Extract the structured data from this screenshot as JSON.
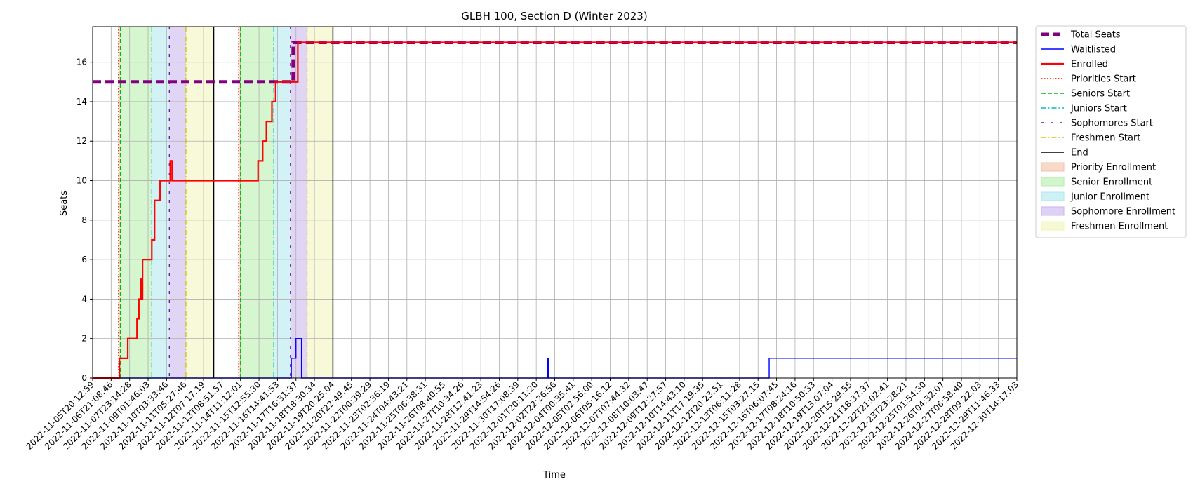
{
  "chart_data": {
    "type": "line",
    "title": "GLBH 100, Section D (Winter 2023)",
    "xlabel": "Time",
    "ylabel": "Seats",
    "ylim": [
      0,
      17.8
    ],
    "yticks": [
      0,
      2,
      4,
      6,
      8,
      10,
      12,
      14,
      16
    ],
    "x_index_range": [
      0,
      50
    ],
    "xtick_labels": [
      "2022-11-05T20:12:59",
      "2022-11-06T21:08:46",
      "2022-11-07T23:14:28",
      "2022-11-09T01:46:03",
      "2022-11-10T03:33:46",
      "2022-11-11T05:27:46",
      "2022-11-12T07:17:19",
      "2022-11-13T08:51:57",
      "2022-11-14T11:12:01",
      "2022-11-15T12:55:30",
      "2022-11-16T14:41:53",
      "2022-11-17T16:31:37",
      "2022-11-18T18:30:34",
      "2022-11-19T20:25:04",
      "2022-11-20T22:49:45",
      "2022-11-22T00:39:29",
      "2022-11-23T02:36:19",
      "2022-11-24T04:43:21",
      "2022-11-25T06:38:31",
      "2022-11-26T08:40:55",
      "2022-11-27T10:34:26",
      "2022-11-28T12:41:23",
      "2022-11-29T14:54:26",
      "2022-11-30T17:08:39",
      "2022-12-01T20:11:20",
      "2022-12-02T22:26:56",
      "2022-12-04T00:35:41",
      "2022-12-05T02:56:00",
      "2022-12-06T05:16:12",
      "2022-12-07T07:44:32",
      "2022-12-08T10:03:47",
      "2022-12-09T12:27:57",
      "2022-12-10T14:43:10",
      "2022-12-11T17:19:35",
      "2022-12-12T20:23:51",
      "2022-12-13T06:11:28",
      "2022-12-15T03:27:15",
      "2022-12-16T06:07:45",
      "2022-12-17T08:24:16",
      "2022-12-18T10:50:33",
      "2022-12-19T13:07:04",
      "2022-12-20T15:29:55",
      "2022-12-21T18:37:37",
      "2022-12-22T21:02:41",
      "2022-12-23T23:28:21",
      "2022-12-25T01:54:30",
      "2022-12-26T04:32:07",
      "2022-12-27T06:58:40",
      "2022-12-28T09:22:03",
      "2022-12-29T11:46:33",
      "2022-12-30T14:17:03"
    ],
    "series": [
      {
        "name": "Total Seats",
        "color": "#800080",
        "style": "dashed",
        "points": [
          [
            0,
            15
          ],
          [
            10.85,
            15
          ],
          [
            10.85,
            17
          ],
          [
            50,
            17
          ]
        ]
      },
      {
        "name": "Waitlisted",
        "color": "#0000ff",
        "style": "solid",
        "points": [
          [
            0,
            0
          ],
          [
            10.75,
            0
          ],
          [
            10.75,
            1
          ],
          [
            11,
            1
          ],
          [
            11,
            2
          ],
          [
            11.3,
            2
          ],
          [
            11.3,
            0
          ],
          [
            24.6,
            0
          ],
          [
            24.6,
            1
          ],
          [
            24.65,
            1
          ],
          [
            24.65,
            0
          ],
          [
            36.6,
            0
          ],
          [
            36.6,
            1
          ],
          [
            50,
            1
          ]
        ]
      },
      {
        "name": "Enrolled",
        "color": "#ff0000",
        "style": "solid",
        "points": [
          [
            0,
            0
          ],
          [
            1.45,
            0
          ],
          [
            1.45,
            1
          ],
          [
            1.9,
            1
          ],
          [
            1.9,
            2
          ],
          [
            2.4,
            2
          ],
          [
            2.4,
            3
          ],
          [
            2.5,
            3
          ],
          [
            2.5,
            4
          ],
          [
            2.6,
            4
          ],
          [
            2.6,
            5
          ],
          [
            2.65,
            5
          ],
          [
            2.65,
            4
          ],
          [
            2.7,
            4
          ],
          [
            2.7,
            6
          ],
          [
            3.2,
            6
          ],
          [
            3.2,
            7
          ],
          [
            3.35,
            7
          ],
          [
            3.35,
            9
          ],
          [
            3.65,
            9
          ],
          [
            3.65,
            10
          ],
          [
            4.2,
            10
          ],
          [
            4.2,
            11
          ],
          [
            4.3,
            11
          ],
          [
            4.3,
            10
          ],
          [
            8.95,
            10
          ],
          [
            8.95,
            11
          ],
          [
            9.2,
            11
          ],
          [
            9.2,
            12
          ],
          [
            9.4,
            12
          ],
          [
            9.4,
            13
          ],
          [
            9.7,
            13
          ],
          [
            9.7,
            14
          ],
          [
            9.9,
            14
          ],
          [
            9.9,
            15
          ],
          [
            11.1,
            15
          ],
          [
            11.1,
            17
          ],
          [
            50,
            17
          ]
        ]
      }
    ],
    "markers": [
      {
        "name": "Priorities Start",
        "color": "#ff0000",
        "style": "dotted",
        "x": [
          1.4,
          7.9
        ]
      },
      {
        "name": "Seniors Start",
        "color": "#00bb00",
        "style": "dashed",
        "x": [
          1.5,
          8.0
        ]
      },
      {
        "name": "Juniors Start",
        "color": "#00bfbf",
        "style": "dashdot",
        "x": [
          3.2,
          9.8
        ]
      },
      {
        "name": "Sophomores Start",
        "color": "#6a0dad",
        "style": "loosedash",
        "x": [
          4.15,
          10.7
        ]
      },
      {
        "name": "Freshmen Start",
        "color": "#d4c400",
        "style": "dashdot",
        "x": [
          5.05,
          11.6
        ]
      },
      {
        "name": "End",
        "color": "#000000",
        "style": "solid",
        "x": [
          6.55,
          13.0
        ]
      }
    ],
    "regions": [
      {
        "name": "Priority Enrollment",
        "color": "#f4c2a8",
        "spans": [
          [
            1.4,
            1.5
          ],
          [
            7.9,
            8.0
          ]
        ]
      },
      {
        "name": "Senior Enrollment",
        "color": "#b4eeaa",
        "spans": [
          [
            1.5,
            3.2
          ],
          [
            8.0,
            9.8
          ]
        ]
      },
      {
        "name": "Junior Enrollment",
        "color": "#aee8ee",
        "spans": [
          [
            3.2,
            4.15
          ],
          [
            9.8,
            10.7
          ]
        ]
      },
      {
        "name": "Sophomore Enrollment",
        "color": "#c9b3ef",
        "spans": [
          [
            4.15,
            5.05
          ],
          [
            10.7,
            11.6
          ]
        ]
      },
      {
        "name": "Freshmen Enrollment",
        "color": "#f1f4b8",
        "spans": [
          [
            5.05,
            6.55
          ],
          [
            11.6,
            13.0
          ]
        ]
      }
    ],
    "legend": {
      "placement": "outside-top-right",
      "entries": [
        {
          "label": "Total Seats",
          "kind": "line",
          "color": "#800080",
          "style": "dashed-thick"
        },
        {
          "label": "Waitlisted",
          "kind": "line",
          "color": "#0000ff",
          "style": "solid"
        },
        {
          "label": "Enrolled",
          "kind": "line",
          "color": "#ff0000",
          "style": "solid-thick"
        },
        {
          "label": "Priorities Start",
          "kind": "line",
          "color": "#ff0000",
          "style": "dotted"
        },
        {
          "label": "Seniors Start",
          "kind": "line",
          "color": "#00bb00",
          "style": "dashed"
        },
        {
          "label": "Juniors Start",
          "kind": "line",
          "color": "#00bfbf",
          "style": "dashdot"
        },
        {
          "label": "Sophomores Start",
          "kind": "line",
          "color": "#6a0dad",
          "style": "loosedash"
        },
        {
          "label": "Freshmen Start",
          "kind": "line",
          "color": "#d4c400",
          "style": "dashdot"
        },
        {
          "label": "End",
          "kind": "line",
          "color": "#000000",
          "style": "solid"
        },
        {
          "label": "Priority Enrollment",
          "kind": "patch",
          "color": "#f4c2a8"
        },
        {
          "label": "Senior Enrollment",
          "kind": "patch",
          "color": "#b4eeaa"
        },
        {
          "label": "Junior Enrollment",
          "kind": "patch",
          "color": "#aee8ee"
        },
        {
          "label": "Sophomore Enrollment",
          "kind": "patch",
          "color": "#c9b3ef"
        },
        {
          "label": "Freshmen Enrollment",
          "kind": "patch",
          "color": "#f1f4b8"
        }
      ]
    }
  }
}
